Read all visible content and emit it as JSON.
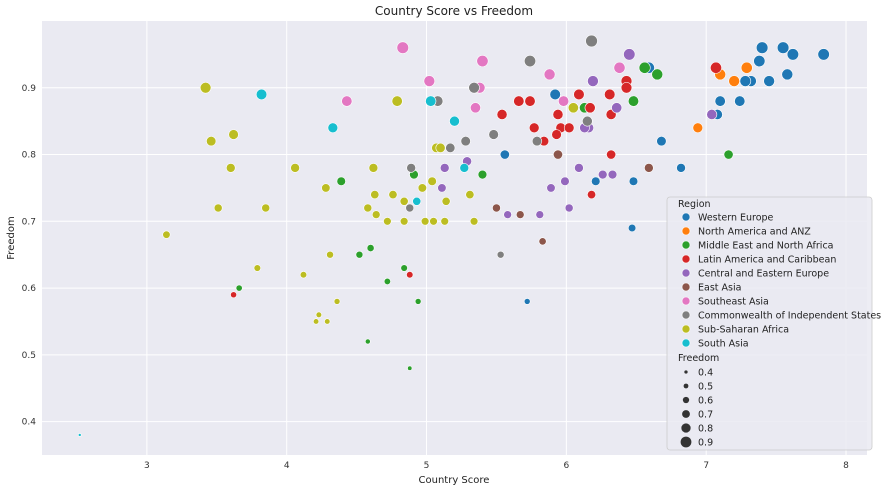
{
  "chart_data": {
    "type": "scatter",
    "title": "Country Score vs Freedom",
    "xlabel": "Country Score",
    "ylabel": "Freedom",
    "xlim": [
      2.25,
      8.15
    ],
    "ylim": [
      0.35,
      1.0
    ],
    "xticks": [
      3,
      4,
      5,
      6,
      7,
      8
    ],
    "yticks": [
      0.4,
      0.5,
      0.6,
      0.7,
      0.8,
      0.9
    ],
    "grid": true,
    "legend_position": "lower-right",
    "legend": {
      "region_title": "Region",
      "size_title": "Freedom",
      "size_values": [
        0.4,
        0.5,
        0.6,
        0.7,
        0.8,
        0.9
      ]
    },
    "series": [
      {
        "name": "Western Europe",
        "color": "#1f77b4",
        "points": [
          [
            7.84,
            0.95
          ],
          [
            7.62,
            0.95
          ],
          [
            7.58,
            0.92
          ],
          [
            7.55,
            0.96
          ],
          [
            7.4,
            0.96
          ],
          [
            7.38,
            0.94
          ],
          [
            7.45,
            0.91
          ],
          [
            7.32,
            0.91
          ],
          [
            7.28,
            0.91
          ],
          [
            7.24,
            0.88
          ],
          [
            7.1,
            0.88
          ],
          [
            7.08,
            0.86
          ],
          [
            6.82,
            0.78
          ],
          [
            6.68,
            0.82
          ],
          [
            6.59,
            0.93
          ],
          [
            6.48,
            0.76
          ],
          [
            6.47,
            0.69
          ],
          [
            6.21,
            0.76
          ],
          [
            5.92,
            0.89
          ],
          [
            5.56,
            0.8
          ],
          [
            5.72,
            0.58
          ]
        ]
      },
      {
        "name": "North America and ANZ",
        "color": "#ff7f0e",
        "points": [
          [
            7.29,
            0.93
          ],
          [
            7.2,
            0.91
          ],
          [
            7.1,
            0.92
          ],
          [
            6.94,
            0.84
          ]
        ]
      },
      {
        "name": "Middle East and North Africa",
        "color": "#2ca02c",
        "points": [
          [
            7.16,
            0.8
          ],
          [
            6.56,
            0.93
          ],
          [
            6.65,
            0.92
          ],
          [
            6.48,
            0.88
          ],
          [
            6.13,
            0.87
          ],
          [
            5.4,
            0.77
          ],
          [
            4.91,
            0.77
          ],
          [
            4.39,
            0.76
          ],
          [
            4.6,
            0.66
          ],
          [
            4.52,
            0.65
          ],
          [
            4.84,
            0.63
          ],
          [
            4.72,
            0.61
          ],
          [
            4.94,
            0.58
          ],
          [
            4.58,
            0.52
          ],
          [
            4.88,
            0.48
          ],
          [
            3.66,
            0.6
          ]
        ]
      },
      {
        "name": "Latin America and Caribbean",
        "color": "#d62728",
        "points": [
          [
            7.07,
            0.93
          ],
          [
            6.43,
            0.91
          ],
          [
            6.43,
            0.9
          ],
          [
            6.31,
            0.89
          ],
          [
            6.09,
            0.89
          ],
          [
            6.17,
            0.87
          ],
          [
            6.32,
            0.86
          ],
          [
            5.94,
            0.86
          ],
          [
            5.66,
            0.88
          ],
          [
            5.74,
            0.88
          ],
          [
            5.54,
            0.86
          ],
          [
            5.77,
            0.84
          ],
          [
            5.96,
            0.84
          ],
          [
            6.02,
            0.84
          ],
          [
            5.93,
            0.83
          ],
          [
            5.84,
            0.82
          ],
          [
            6.32,
            0.8
          ],
          [
            6.18,
            0.74
          ],
          [
            4.88,
            0.62
          ],
          [
            3.62,
            0.59
          ]
        ]
      },
      {
        "name": "Central and Eastern Europe",
        "color": "#9467bd",
        "points": [
          [
            6.45,
            0.95
          ],
          [
            6.19,
            0.91
          ],
          [
            7.04,
            0.86
          ],
          [
            6.36,
            0.87
          ],
          [
            6.16,
            0.84
          ],
          [
            6.13,
            0.84
          ],
          [
            5.29,
            0.79
          ],
          [
            5.13,
            0.78
          ],
          [
            6.09,
            0.78
          ],
          [
            5.99,
            0.76
          ],
          [
            6.26,
            0.77
          ],
          [
            6.33,
            0.77
          ],
          [
            5.89,
            0.75
          ],
          [
            5.11,
            0.75
          ],
          [
            6.02,
            0.72
          ],
          [
            5.58,
            0.71
          ],
          [
            5.81,
            0.71
          ]
        ]
      },
      {
        "name": "East Asia",
        "color": "#8c564b",
        "points": [
          [
            5.35,
            0.9
          ],
          [
            5.94,
            0.8
          ],
          [
            6.59,
            0.78
          ],
          [
            5.5,
            0.72
          ],
          [
            5.67,
            0.71
          ],
          [
            5.83,
            0.67
          ]
        ]
      },
      {
        "name": "Southeast Asia",
        "color": "#e377c2",
        "points": [
          [
            4.83,
            0.96
          ],
          [
            5.4,
            0.94
          ],
          [
            5.88,
            0.92
          ],
          [
            6.38,
            0.93
          ],
          [
            5.02,
            0.91
          ],
          [
            5.35,
            0.87
          ],
          [
            5.98,
            0.88
          ],
          [
            5.38,
            0.9
          ],
          [
            4.43,
            0.88
          ]
        ]
      },
      {
        "name": "Commonwealth of Independent States",
        "color": "#7f7f7f",
        "points": [
          [
            6.18,
            0.97
          ],
          [
            5.74,
            0.94
          ],
          [
            5.08,
            0.88
          ],
          [
            5.34,
            0.9
          ],
          [
            5.48,
            0.83
          ],
          [
            5.28,
            0.82
          ],
          [
            5.17,
            0.81
          ],
          [
            5.79,
            0.82
          ],
          [
            6.15,
            0.85
          ],
          [
            4.89,
            0.78
          ],
          [
            4.88,
            0.72
          ],
          [
            5.53,
            0.65
          ]
        ]
      },
      {
        "name": "Sub-Saharan Africa",
        "color": "#bcbd22",
        "points": [
          [
            3.42,
            0.9
          ],
          [
            4.79,
            0.88
          ],
          [
            3.46,
            0.82
          ],
          [
            3.62,
            0.83
          ],
          [
            3.6,
            0.78
          ],
          [
            4.62,
            0.78
          ],
          [
            4.06,
            0.78
          ],
          [
            5.07,
            0.81
          ],
          [
            5.1,
            0.81
          ],
          [
            6.05,
            0.87
          ],
          [
            3.51,
            0.72
          ],
          [
            3.85,
            0.72
          ],
          [
            4.28,
            0.75
          ],
          [
            4.63,
            0.74
          ],
          [
            4.76,
            0.74
          ],
          [
            4.84,
            0.73
          ],
          [
            4.97,
            0.75
          ],
          [
            5.04,
            0.76
          ],
          [
            5.14,
            0.73
          ],
          [
            5.31,
            0.74
          ],
          [
            4.58,
            0.72
          ],
          [
            4.64,
            0.71
          ],
          [
            4.72,
            0.7
          ],
          [
            4.84,
            0.7
          ],
          [
            4.99,
            0.7
          ],
          [
            5.05,
            0.7
          ],
          [
            5.13,
            0.7
          ],
          [
            5.34,
            0.7
          ],
          [
            3.14,
            0.68
          ],
          [
            3.79,
            0.63
          ],
          [
            4.31,
            0.65
          ],
          [
            4.12,
            0.62
          ],
          [
            4.36,
            0.58
          ],
          [
            4.23,
            0.56
          ],
          [
            4.21,
            0.55
          ],
          [
            4.29,
            0.55
          ]
        ]
      },
      {
        "name": "South Asia",
        "color": "#17becf",
        "points": [
          [
            3.82,
            0.89
          ],
          [
            5.03,
            0.88
          ],
          [
            4.33,
            0.84
          ],
          [
            5.2,
            0.85
          ],
          [
            5.27,
            0.78
          ],
          [
            4.93,
            0.73
          ],
          [
            2.52,
            0.38
          ]
        ]
      }
    ]
  }
}
